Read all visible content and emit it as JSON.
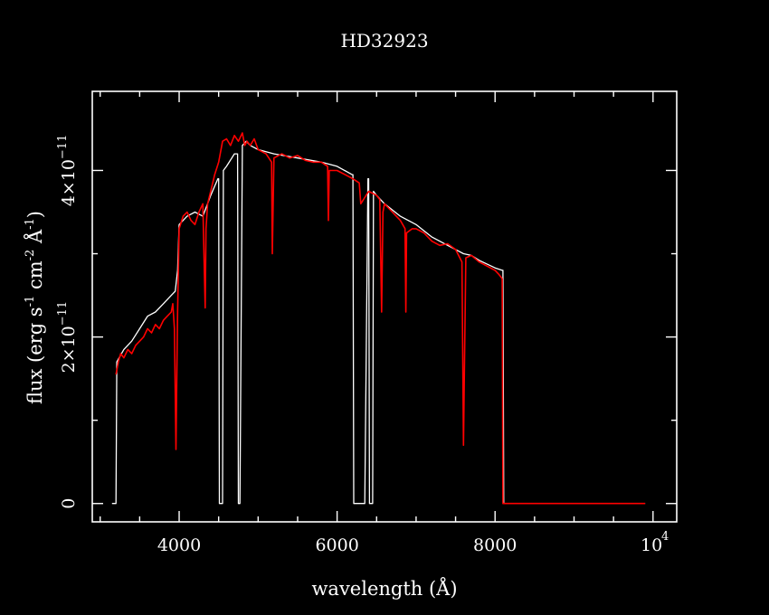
{
  "chart_data": {
    "type": "line",
    "title": "HD32923",
    "xlabel": "wavelength (Å)",
    "ylabel_parts": {
      "a": "flux (erg s",
      "b": "-1",
      "c": " cm",
      "d": "-2",
      "e": " Å",
      "f": "-1",
      "g": ")"
    },
    "xlim": [
      2900,
      10300
    ],
    "ylim": [
      -2.2e-12,
      4.95e-11
    ],
    "x_ticks": [
      {
        "value": 4000,
        "label": "4000"
      },
      {
        "value": 6000,
        "label": "6000"
      },
      {
        "value": 8000,
        "label": "8000"
      }
    ],
    "x_tick_10k": {
      "value": 10000,
      "base": "10",
      "exp": "4"
    },
    "y_ticks": [
      {
        "value": 0,
        "label": "0"
      },
      {
        "value": 2e-11,
        "label": "2×10",
        "exp": "−11"
      },
      {
        "value": 4e-11,
        "label": "4×10",
        "exp": "−11"
      }
    ],
    "colors": {
      "red": "#ff0000",
      "white": "#ffffff",
      "axis": "#ffffff"
    },
    "series": [
      {
        "color": "white",
        "x": [
          3150,
          3200,
          3210,
          3300,
          3400,
          3500,
          3600,
          3700,
          3800,
          3900,
          3950,
          3980,
          4000,
          4100,
          4200,
          4300,
          4400,
          4490,
          4500,
          4510,
          4550,
          4560,
          4600,
          4700,
          4740,
          4750,
          4770,
          4800,
          4850,
          4900,
          5000,
          5200,
          5500,
          5800,
          6000,
          6190,
          6200,
          6210,
          6350,
          6390,
          6400,
          6410,
          6450,
          6460,
          6500,
          6600,
          6800,
          7000,
          7200,
          7400,
          7600,
          7700,
          7800,
          8000,
          8090,
          8100,
          8110,
          9900
        ],
        "y": [
          0,
          0,
          1.7e-11,
          1.85e-11,
          1.95e-11,
          2.1e-11,
          2.25e-11,
          2.3e-11,
          2.4e-11,
          2.5e-11,
          2.55e-11,
          2.8e-11,
          3.35e-11,
          3.45e-11,
          3.5e-11,
          3.45e-11,
          3.7e-11,
          3.9e-11,
          3.9e-11,
          0,
          0,
          4e-11,
          4.05e-11,
          4.2e-11,
          4.2e-11,
          0,
          0,
          4.3e-11,
          4.35e-11,
          4.3e-11,
          4.25e-11,
          4.2e-11,
          4.15e-11,
          4.1e-11,
          4.05e-11,
          3.95e-11,
          3.95e-11,
          0,
          0,
          3.9e-11,
          3.9e-11,
          0,
          0,
          3.75e-11,
          3.7e-11,
          3.6e-11,
          3.45e-11,
          3.35e-11,
          3.2e-11,
          3.1e-11,
          3e-11,
          2.98e-11,
          2.92e-11,
          2.83e-11,
          2.8e-11,
          2.8e-11,
          0,
          0
        ]
      },
      {
        "color": "red",
        "x": [
          3200,
          3230,
          3260,
          3300,
          3350,
          3400,
          3450,
          3500,
          3550,
          3600,
          3650,
          3700,
          3750,
          3800,
          3850,
          3900,
          3920,
          3940,
          3960,
          3970,
          3980,
          4000,
          4050,
          4100,
          4150,
          4200,
          4250,
          4300,
          4330,
          4340,
          4360,
          4400,
          4450,
          4500,
          4550,
          4600,
          4650,
          4700,
          4750,
          4800,
          4830,
          4860,
          4900,
          4950,
          5000,
          5100,
          5170,
          5180,
          5200,
          5300,
          5400,
          5500,
          5600,
          5700,
          5800,
          5880,
          5890,
          5900,
          6000,
          6100,
          6200,
          6280,
          6300,
          6400,
          6500,
          6540,
          6563,
          6580,
          6600,
          6700,
          6800,
          6860,
          6870,
          6880,
          6950,
          7000,
          7100,
          7200,
          7300,
          7400,
          7500,
          7580,
          7600,
          7610,
          7630,
          7700,
          7800,
          7900,
          8000,
          8050,
          8090,
          8100,
          8110,
          9900
        ],
        "y": [
          1.55e-11,
          1.7e-11,
          1.8e-11,
          1.75e-11,
          1.85e-11,
          1.8e-11,
          1.9e-11,
          1.95e-11,
          2e-11,
          2.1e-11,
          2.05e-11,
          2.15e-11,
          2.1e-11,
          2.2e-11,
          2.25e-11,
          2.3e-11,
          2.4e-11,
          2.1e-11,
          6.5e-12,
          1.5e-11,
          2.3e-11,
          3.3e-11,
          3.45e-11,
          3.5e-11,
          3.4e-11,
          3.35e-11,
          3.5e-11,
          3.6e-11,
          2.35e-11,
          3.3e-11,
          3.6e-11,
          3.75e-11,
          3.95e-11,
          4.1e-11,
          4.35e-11,
          4.38e-11,
          4.3e-11,
          4.42e-11,
          4.35e-11,
          4.45e-11,
          4.3e-11,
          4.35e-11,
          4.3e-11,
          4.38e-11,
          4.25e-11,
          4.2e-11,
          4.1e-11,
          3e-11,
          4.15e-11,
          4.2e-11,
          4.15e-11,
          4.18e-11,
          4.12e-11,
          4.1e-11,
          4.1e-11,
          4.05e-11,
          3.4e-11,
          4e-11,
          4e-11,
          3.95e-11,
          3.9e-11,
          3.85e-11,
          3.6e-11,
          3.75e-11,
          3.7e-11,
          3.65e-11,
          2.3e-11,
          3.5e-11,
          3.6e-11,
          3.5e-11,
          3.4e-11,
          3.3e-11,
          2.3e-11,
          3.25e-11,
          3.3e-11,
          3.3e-11,
          3.25e-11,
          3.15e-11,
          3.1e-11,
          3.12e-11,
          3.05e-11,
          2.9e-11,
          7e-12,
          1.5e-11,
          2.95e-11,
          2.98e-11,
          2.9e-11,
          2.85e-11,
          2.8e-11,
          2.75e-11,
          2.7e-11,
          0,
          0,
          0
        ]
      }
    ]
  }
}
